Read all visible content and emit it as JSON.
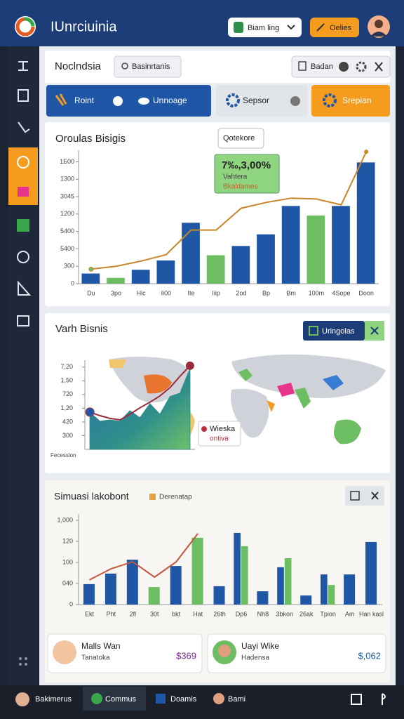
{
  "header": {
    "title": "IUnrciuinia",
    "search_button": "Biam ling",
    "action_button": "Oelies"
  },
  "toolbar": {
    "title": "Noclndsia",
    "search": "Basinrtanis",
    "filter": "Badan"
  },
  "tabs": [
    "Roint",
    "Unnoage",
    "Sepsor",
    "Srepian"
  ],
  "chart_data": [
    {
      "type": "bar",
      "title": "Oroulas Bisigis",
      "button": "Qotekore",
      "annotations": [
        "7‰,3,00%",
        "Vahtera",
        "Bkaldames"
      ],
      "categories": [
        "Du",
        "3po",
        "Hic",
        "Ii00",
        "Ite",
        "Iiip",
        "2od",
        "Bp",
        "Bm",
        "100m",
        "4Sope",
        "Doon"
      ],
      "colors": [
        "#1f57a6",
        "#6dbd62",
        "#1f57a6",
        "#1f57a6",
        "#1f57a6",
        "#6dbd62",
        "#1f57a6",
        "#1f57a6",
        "#1f57a6",
        "#6dbd62",
        "#1f57a6",
        "#1f57a6"
      ],
      "series": [
        {
          "type": "bar",
          "values": [
            175,
            100,
            240,
            400,
            1050,
            490,
            650,
            850,
            1340,
            1175,
            1340,
            2090
          ]
        },
        {
          "type": "line",
          "color": "#c8862a",
          "values": [
            250,
            300,
            390,
            500,
            925,
            925,
            1300,
            1400,
            1475,
            1460,
            1360,
            2275
          ]
        }
      ],
      "ylim": [
        0,
        2300
      ],
      "yticks": [
        0,
        300,
        {
          "value": 600,
          "label": "5400"
        },
        {
          "value": 900,
          "label": "5400"
        },
        1200,
        {
          "value": 1500,
          "label": "3045"
        },
        {
          "value": 1800,
          "label": "1300"
        },
        {
          "value": 2100,
          "label": "1Б00"
        }
      ],
      "grid": false
    },
    {
      "type": "area",
      "title": "Varh Bisnis",
      "button": "Uringolas",
      "annotations": [
        "Wieska",
        "ontiva"
      ],
      "xlabel": "Fecesslon",
      "categories": [
        null,
        null,
        null,
        null,
        null,
        null,
        null,
        null,
        null,
        null,
        null
      ],
      "series": [
        {
          "type": "area",
          "color": "#2f8f8a",
          "values": [
            2.72,
            2.05,
            2.15,
            2.05,
            2.82,
            2.31,
            3.33,
            2.56,
            3.85,
            4.1,
            5.9
          ]
        },
        {
          "type": "line",
          "color": "#9b2a3a",
          "values": [
            2.72,
            2.46,
            2.26,
            2.15,
            2.56,
            3.03,
            3.44,
            3.9,
            4.5,
            5.33,
            6.1
          ]
        }
      ],
      "ylim": [
        0,
        6.5
      ],
      "yticks": [
        {
          "value": 1,
          "label": "300"
        },
        {
          "value": 2,
          "label": "420"
        },
        {
          "value": 3,
          "label": "1,20"
        },
        {
          "value": 4,
          "label": "720"
        },
        {
          "value": 5,
          "label": "1,50"
        },
        {
          "value": 6,
          "label": "7,20"
        }
      ],
      "grid": false
    },
    {
      "type": "bar",
      "title": "Simuasi lakobont",
      "categories": [
        "Ekt",
        "Pht",
        "2fl",
        "30t",
        "bkt",
        "Hat",
        "26th",
        "Dp6",
        "Nh8",
        "3bkon",
        "26ak",
        "Tpion",
        "Am",
        "Han kasl"
      ],
      "series": [
        {
          "type": "bar",
          "color": "#1f57a6",
          "values": [
            0.97,
            1.47,
            2.13,
            null,
            1.83,
            null,
            0.87,
            3.4,
            0.63,
            1.77,
            0.43,
            1.43,
            1.43,
            2.97
          ]
        },
        {
          "type": "bar",
          "color": "#6dbd62",
          "values": [
            null,
            null,
            null,
            0.83,
            null,
            3.17,
            null,
            2.77,
            null,
            2.2,
            null,
            0.93,
            null,
            null
          ]
        },
        {
          "type": "line",
          "name": "Derenatap",
          "color": "#c8553a",
          "values": [
            1.17,
            1.7,
            2.03,
            1.3,
            2.03,
            3.37,
            null,
            null,
            null,
            null,
            null,
            null,
            null,
            null
          ]
        }
      ],
      "ylim": [
        0,
        4.3
      ],
      "yticks": [
        0,
        {
          "value": 1,
          "label": "040"
        },
        {
          "value": 2,
          "label": "100"
        },
        {
          "value": 3,
          "label": "120"
        },
        {
          "value": 4,
          "label": "1,000"
        }
      ],
      "grid": false
    }
  ],
  "people": [
    {
      "name": "Malls Wan",
      "role": "Tanatoka",
      "amount": "$369"
    },
    {
      "name": "Uayi Wike",
      "role": "Hadensa",
      "amount": "$,062"
    }
  ],
  "taskbar": [
    "Bakimerus",
    "Commus",
    "Doamis",
    "Bami"
  ]
}
